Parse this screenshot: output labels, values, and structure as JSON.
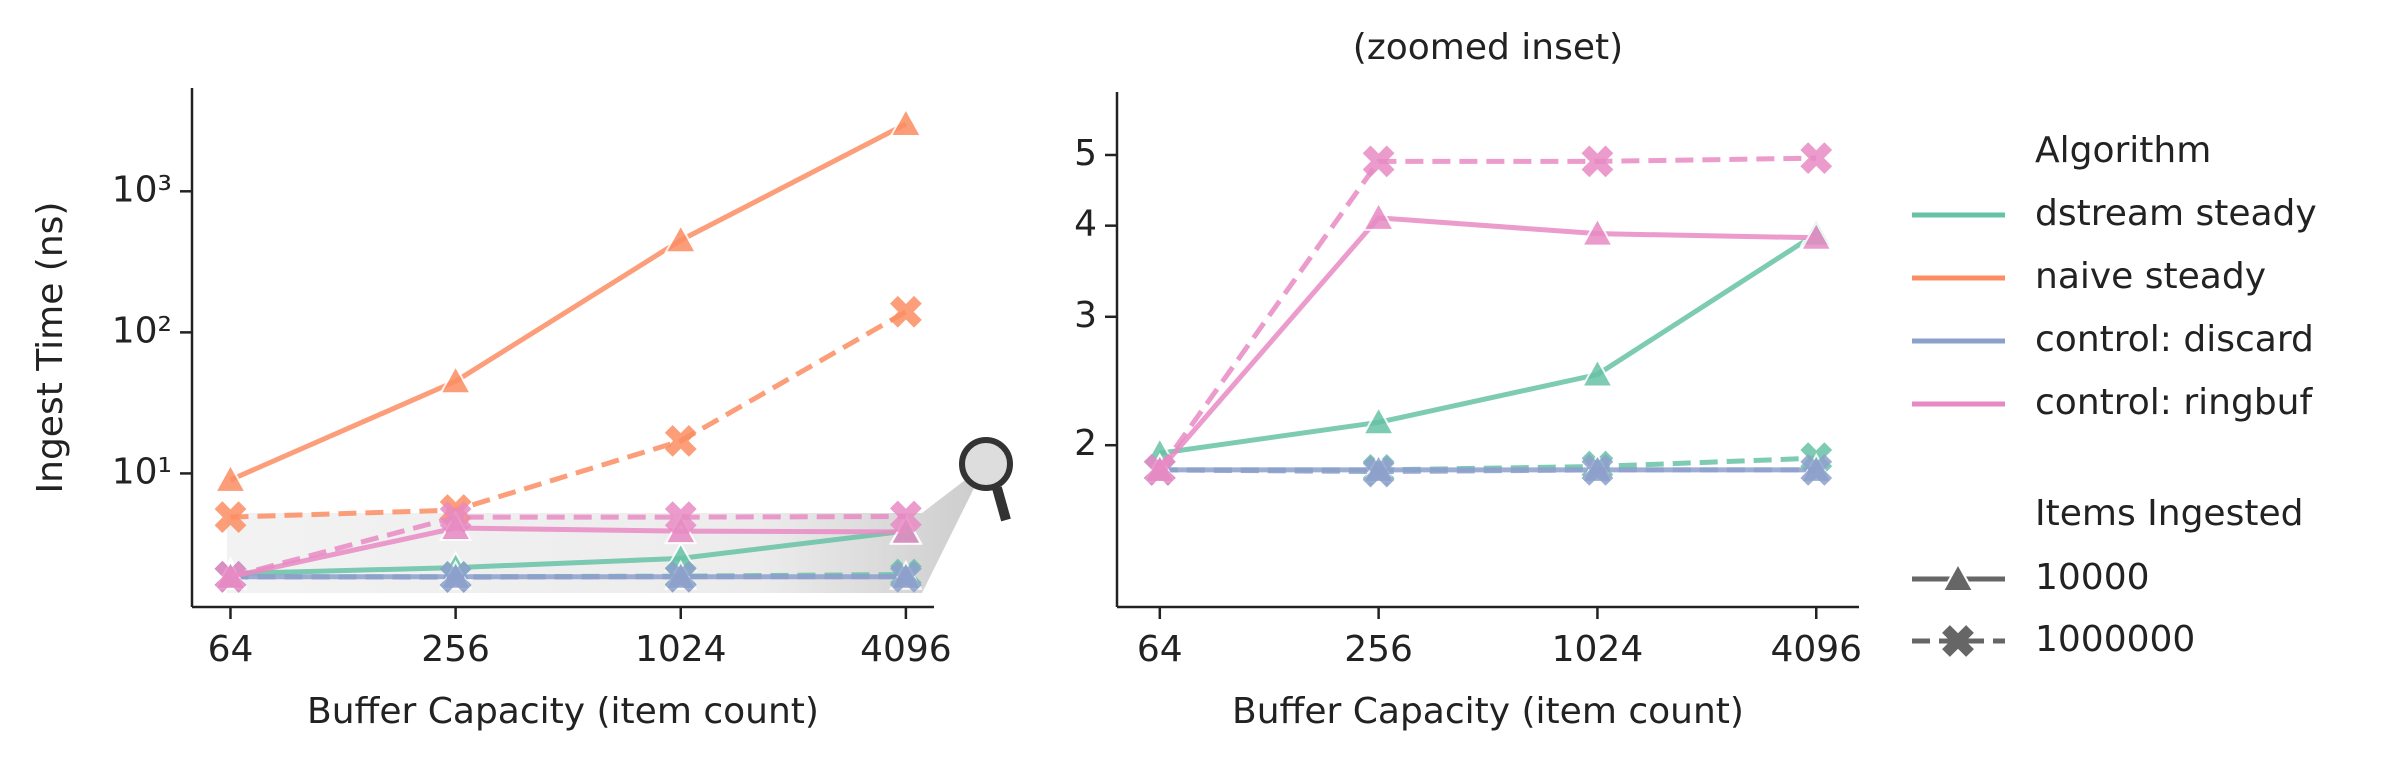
{
  "chart_data": [
    {
      "type": "line",
      "x_label": "Buffer Capacity (item count)",
      "y_label": "Ingest Time (ns)",
      "x": [
        64,
        256,
        1024,
        4096
      ],
      "xlim": [
        50.5,
        4870
      ],
      "xticks": [
        64,
        256,
        1024,
        4096
      ],
      "xscale": "log",
      "ylim": [
        1.13,
        5400
      ],
      "yscale": "log",
      "yticks": [
        {
          "value": 10,
          "label": "10¹"
        },
        {
          "value": 100,
          "label": "10²"
        },
        {
          "value": 1000,
          "label": "10³"
        }
      ],
      "series": [
        {
          "algorithm": 0,
          "items": 0,
          "values": [
            1.95,
            2.15,
            2.5,
            3.9
          ]
        },
        {
          "algorithm": 0,
          "items": 1,
          "values": [
            1.85,
            1.85,
            1.87,
            1.92
          ]
        },
        {
          "algorithm": 1,
          "items": 0,
          "values": [
            9,
            45,
            450,
            3000
          ]
        },
        {
          "algorithm": 1,
          "items": 1,
          "values": [
            4.9,
            5.5,
            17,
            140
          ]
        },
        {
          "algorithm": 2,
          "items": 0,
          "values": [
            1.85,
            1.85,
            1.85,
            1.85
          ]
        },
        {
          "algorithm": 2,
          "items": 1,
          "values": [
            1.85,
            1.84,
            1.85,
            1.85
          ]
        },
        {
          "algorithm": 3,
          "items": 0,
          "values": [
            1.85,
            4.1,
            3.9,
            3.85
          ]
        },
        {
          "algorithm": 3,
          "items": 1,
          "values": [
            1.85,
            4.9,
            4.9,
            4.95
          ]
        }
      ]
    },
    {
      "type": "line",
      "title": "(zoomed inset)",
      "x_label": "Buffer Capacity (item count)",
      "x": [
        64,
        256,
        1024,
        4096
      ],
      "xlim": [
        48.8,
        5370
      ],
      "xticks": [
        64,
        256,
        1024,
        4096
      ],
      "xscale": "log",
      "ylim": [
        1.2,
        6.1
      ],
      "yscale": "log",
      "yticks": [
        2,
        3,
        4,
        5
      ],
      "series": [
        {
          "algorithm": 0,
          "items": 0,
          "values": [
            1.95,
            2.15,
            2.5,
            3.9
          ]
        },
        {
          "algorithm": 0,
          "items": 1,
          "values": [
            1.85,
            1.85,
            1.87,
            1.92
          ]
        },
        {
          "algorithm": 2,
          "items": 0,
          "values": [
            1.85,
            1.85,
            1.85,
            1.85
          ]
        },
        {
          "algorithm": 2,
          "items": 1,
          "values": [
            1.85,
            1.84,
            1.85,
            1.85
          ]
        },
        {
          "algorithm": 3,
          "items": 0,
          "values": [
            1.85,
            4.1,
            3.9,
            3.85
          ]
        },
        {
          "algorithm": 3,
          "items": 1,
          "values": [
            1.85,
            4.9,
            4.9,
            4.95
          ]
        }
      ]
    }
  ],
  "legend": {
    "hue_title": "Algorithm",
    "hue": [
      {
        "name": "dstream steady",
        "color": "#66c2a5"
      },
      {
        "name": "naive steady",
        "color": "#fc8d62"
      },
      {
        "name": "control: discard",
        "color": "#8da0cb"
      },
      {
        "name": "control: ringbuf",
        "color": "#e78ac3"
      }
    ],
    "style_title": "Items Ingested",
    "style": [
      {
        "name": "10000",
        "marker": "triangle",
        "dashed": false
      },
      {
        "name": "1000000",
        "marker": "x",
        "dashed": true
      }
    ]
  }
}
